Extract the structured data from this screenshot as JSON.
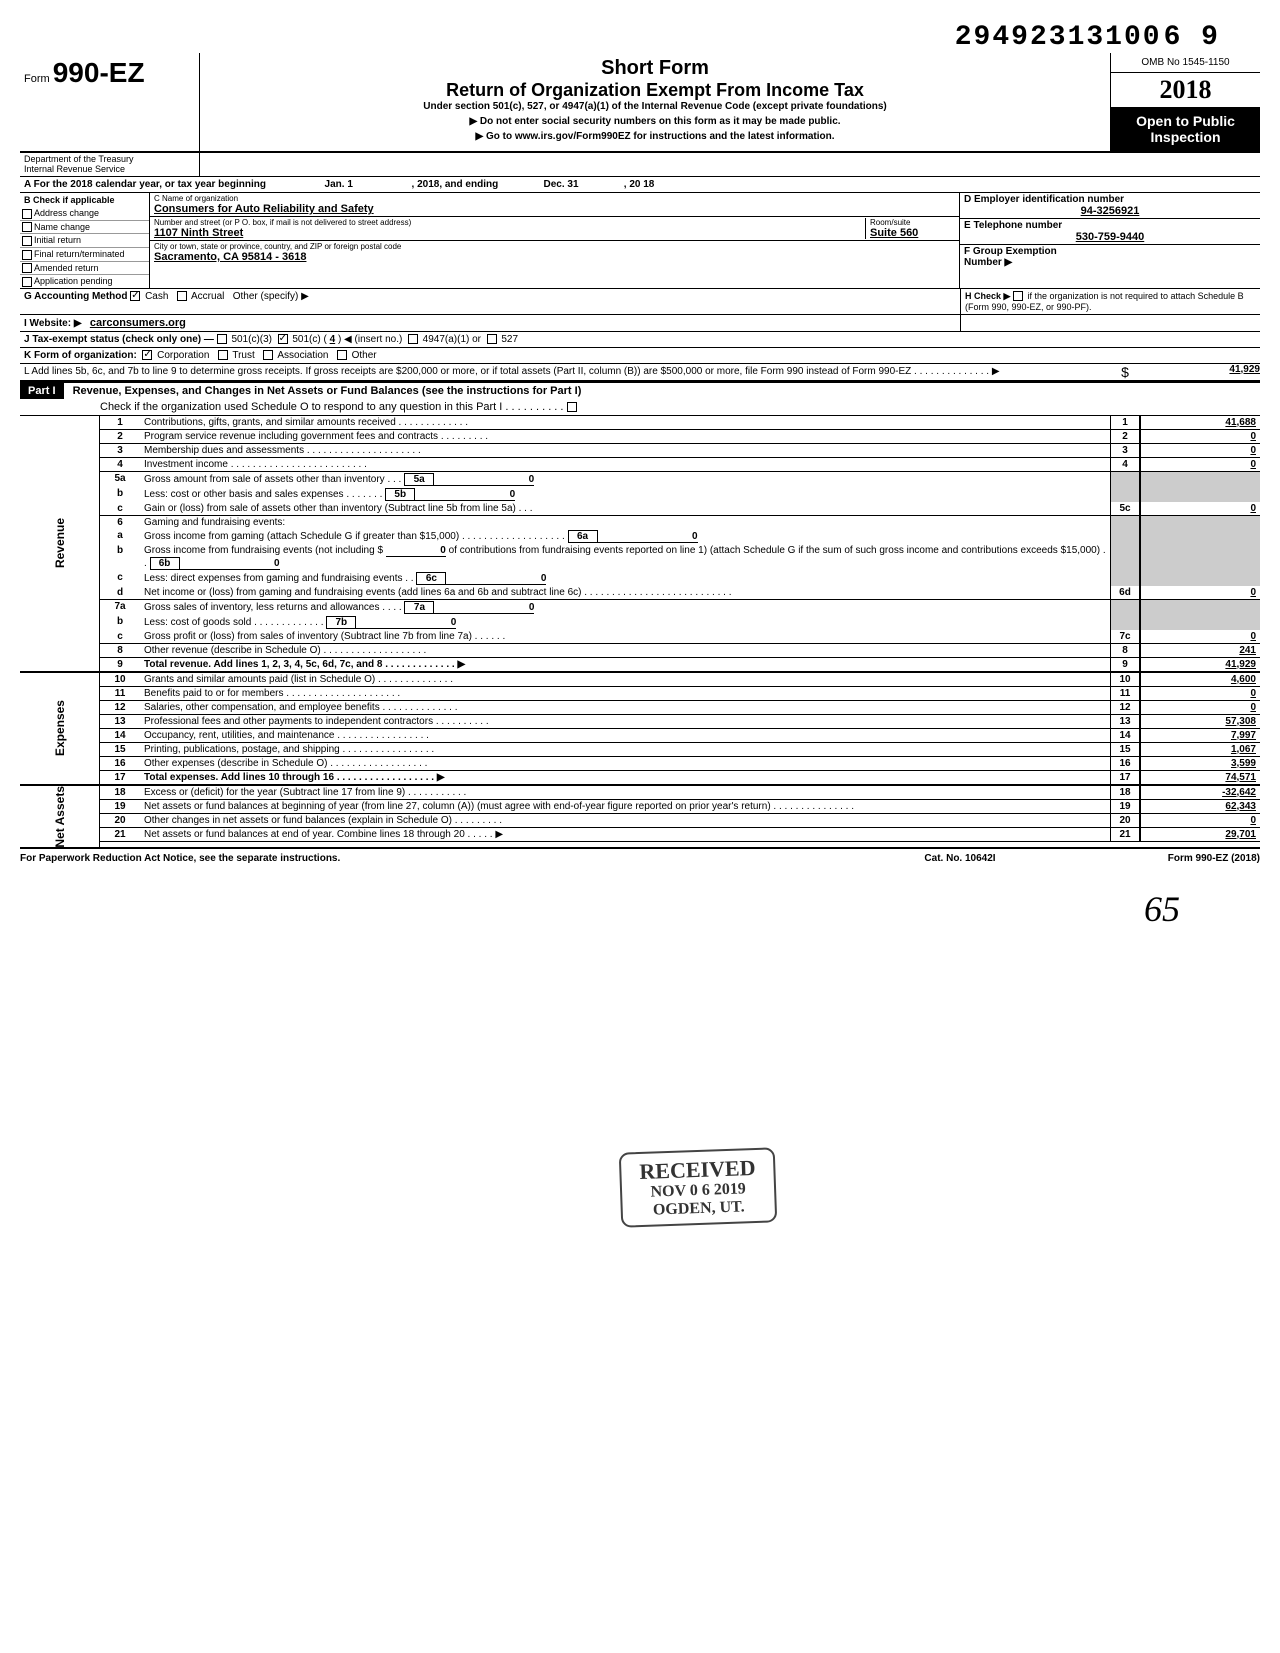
{
  "doc_id": "29492313100\u00166 9",
  "header": {
    "form": "990-EZ",
    "form_prefix": "Form",
    "short_form": "Short Form",
    "main_title": "Return of Organization Exempt From Income Tax",
    "subtitle": "Under section 501(c), 527, or 4947(a)(1) of the Internal Revenue Code (except private foundations)",
    "warn": "▶ Do not enter social security numbers on this form as it may be made public.",
    "goto": "▶ Go to www.irs.gov/Form990EZ for instructions and the latest information.",
    "omb": "OMB No 1545-1150",
    "year": "2018",
    "open_public": "Open to Public Inspection",
    "dept": "Department of the Treasury",
    "irs": "Internal Revenue Service"
  },
  "row_a": {
    "label": "A For the 2018 calendar year, or tax year beginning",
    "begin": "Jan. 1",
    "mid": ", 2018, and ending",
    "end": "Dec. 31",
    "end_year": ", 20   18"
  },
  "box_b": {
    "label": "B  Check if applicable",
    "items": [
      "Address change",
      "Name change",
      "Initial return",
      "Final return/terminated",
      "Amended return",
      "Application pending"
    ]
  },
  "box_c": {
    "label": "C  Name of organization",
    "org_name": "Consumers for Auto Reliability and Safety",
    "addr_label": "Number and street (or P O. box, if mail is not delivered to street address)",
    "room_label": "Room/suite",
    "street": "1107 Ninth Street",
    "suite": "Suite 560",
    "city_label": "City or town, state or province, country, and ZIP or foreign postal code",
    "city": "Sacramento, CA 95814 - 3618"
  },
  "box_d": {
    "label": "D Employer identification number",
    "ein": "94-3256921",
    "tel_label": "E  Telephone number",
    "tel": "530-759-9440",
    "group_label": "F  Group Exemption",
    "group_label2": "Number ▶"
  },
  "row_g": {
    "label": "G  Accounting Method",
    "cash": "Cash",
    "accrual": "Accrual",
    "other": "Other (specify) ▶"
  },
  "row_h": {
    "label": "H  Check ▶",
    "text": "if the organization is not required to attach Schedule B (Form 990, 990-EZ, or 990-PF)."
  },
  "row_i": {
    "label": "I   Website: ▶",
    "value": "carconsumers.org"
  },
  "row_j": {
    "label": "J  Tax-exempt status (check only one) —",
    "opt1": "501(c)(3)",
    "opt2": "501(c) (",
    "insert": "4",
    "opt2b": ") ◀ (insert no.)",
    "opt3": "4947(a)(1) or",
    "opt4": "527"
  },
  "row_k": {
    "label": "K  Form of organization:",
    "corp": "Corporation",
    "trust": "Trust",
    "assoc": "Association",
    "other": "Other"
  },
  "row_l": {
    "text": "L  Add lines 5b, 6c, and 7b to line 9 to determine gross receipts. If gross receipts are $200,000 or more, or if total assets (Part II, column (B)) are $500,000 or more, file Form 990 instead of Form 990-EZ . . . . . . . . . . . . . .  ▶",
    "amount": "41,929"
  },
  "part1": {
    "label": "Part I",
    "title": "Revenue, Expenses, and Changes in Net Assets or Fund Balances (see the instructions for Part I)",
    "check_text": "Check if the organization used Schedule O to respond to any question in this Part I . . . . . . . . . ."
  },
  "sections": {
    "revenue": "Revenue",
    "expenses": "Expenses",
    "net_assets": "Net Assets"
  },
  "lines": {
    "l1": {
      "num": "1",
      "desc": "Contributions, gifts, grants, and similar amounts received . . . . . . . . . . . . .",
      "box": "1",
      "amt": "41,688"
    },
    "l2": {
      "num": "2",
      "desc": "Program service revenue including government fees and contracts  . . . . . . . . .",
      "box": "2",
      "amt": "0"
    },
    "l3": {
      "num": "3",
      "desc": "Membership dues and assessments . . . . . . . . . . . . . . . . . . . . .",
      "box": "3",
      "amt": "0"
    },
    "l4": {
      "num": "4",
      "desc": "Investment income   . . . . . . . . . . . . . . . . . . . . . . . . .",
      "box": "4",
      "amt": "0"
    },
    "l5a": {
      "num": "5a",
      "desc": "Gross amount from sale of assets other than inventory   . . .",
      "sub": "5a",
      "subamt": "0"
    },
    "l5b": {
      "num": "b",
      "desc": "Less: cost or other basis and sales expenses . . . . . . .",
      "sub": "5b",
      "subamt": "0"
    },
    "l5c": {
      "num": "c",
      "desc": "Gain or (loss) from sale of assets other than inventory (Subtract line 5b from line 5a) . . .",
      "box": "5c",
      "amt": "0"
    },
    "l6": {
      "num": "6",
      "desc": "Gaming and fundraising events:"
    },
    "l6a": {
      "num": "a",
      "desc": "Gross income from gaming (attach Schedule G if greater than $15,000) . . . . . . . . . . . . . . . . . . .",
      "sub": "6a",
      "subamt": "0"
    },
    "l6b": {
      "num": "b",
      "desc": "Gross income from fundraising events (not including  $",
      "desc2": "of contributions from fundraising events reported on line 1) (attach Schedule G if the sum of such gross income and contributions exceeds $15,000) . .",
      "sub": "6b",
      "sub0": "0",
      "subamt": "0"
    },
    "l6c": {
      "num": "c",
      "desc": "Less: direct expenses from gaming and fundraising events   . .",
      "sub": "6c",
      "subamt": "0"
    },
    "l6d": {
      "num": "d",
      "desc": "Net income or (loss) from gaming and fundraising events (add lines 6a and 6b and subtract line 6c)    . . . . . . . . . . . . . . . . . . . . . . . . . . .",
      "box": "6d",
      "amt": "0"
    },
    "l7a": {
      "num": "7a",
      "desc": "Gross sales of inventory, less returns and allowances  . . . .",
      "sub": "7a",
      "subamt": "0"
    },
    "l7b": {
      "num": "b",
      "desc": "Less: cost of goods sold    . . . . . . . . . . . . .",
      "sub": "7b",
      "subamt": "0"
    },
    "l7c": {
      "num": "c",
      "desc": "Gross profit or (loss) from sales of inventory (Subtract line 7b from line 7a)  . . . . . .",
      "box": "7c",
      "amt": "0"
    },
    "l8": {
      "num": "8",
      "desc": "Other revenue (describe in Schedule O) . . . . . . . . . . . . . . . . . . .",
      "box": "8",
      "amt": "241"
    },
    "l9": {
      "num": "9",
      "desc": "Total revenue. Add lines 1, 2, 3, 4, 5c, 6d, 7c, and 8   . . . . . . . . . . . . .   ▶",
      "box": "9",
      "amt": "41,929"
    },
    "l10": {
      "num": "10",
      "desc": "Grants and similar amounts paid (list in Schedule O)   . . . . . . . . . . . . . .",
      "box": "10",
      "amt": "4,600"
    },
    "l11": {
      "num": "11",
      "desc": "Benefits paid to or for members  . . . . . . . . . . . . . . . . . . . . .",
      "box": "11",
      "amt": "0"
    },
    "l12": {
      "num": "12",
      "desc": "Salaries, other compensation, and employee benefits . . . . . . . . . . . . . .",
      "box": "12",
      "amt": "0"
    },
    "l13": {
      "num": "13",
      "desc": "Professional fees and other payments to independent contractors . . . . . . . . . .",
      "box": "13",
      "amt": "57,308"
    },
    "l14": {
      "num": "14",
      "desc": "Occupancy, rent, utilities, and maintenance   . . . . . . . . . . . . . . . . .",
      "box": "14",
      "amt": "7,997"
    },
    "l15": {
      "num": "15",
      "desc": "Printing, publications, postage, and shipping . . . . . . . . . . . . . . . . .",
      "box": "15",
      "amt": "1,067"
    },
    "l16": {
      "num": "16",
      "desc": "Other expenses (describe in Schedule O)  . . . . . . . . . . . . . . . . . .",
      "box": "16",
      "amt": "3,599"
    },
    "l17": {
      "num": "17",
      "desc": "Total expenses. Add lines 10 through 16 . . . . . . . . . . . . . . . . . .  ▶",
      "box": "17",
      "amt": "74,571"
    },
    "l18": {
      "num": "18",
      "desc": "Excess or (deficit) for the year (Subtract line 17 from line 9)   . . . . . . . . . . .",
      "box": "18",
      "amt": "-32,642"
    },
    "l19": {
      "num": "19",
      "desc": "Net assets or fund balances at beginning of year (from line 27, column (A)) (must agree with end-of-year figure reported on prior year's return)   . . . . . . . . . . . . . . .",
      "box": "19",
      "amt": "62,343"
    },
    "l20": {
      "num": "20",
      "desc": "Other changes in net assets or fund balances (explain in Schedule O) . . . . . . . . .",
      "box": "20",
      "amt": "0"
    },
    "l21": {
      "num": "21",
      "desc": "Net assets or fund balances at end of year. Combine lines 18 through 20   . . . . .   ▶",
      "box": "21",
      "amt": "29,701"
    }
  },
  "stamp": {
    "received": "RECEIVED",
    "date": "NOV 0 6 2019",
    "loc": "OGDEN, UT."
  },
  "footer": {
    "left": "For Paperwork Reduction Act Notice, see the separate instructions.",
    "mid": "Cat. No. 10642I",
    "right": "Form 990-EZ (2018)"
  },
  "handwrite": "65",
  "colors": {
    "black": "#000000",
    "white": "#ffffff",
    "grey": "#cccccc"
  }
}
